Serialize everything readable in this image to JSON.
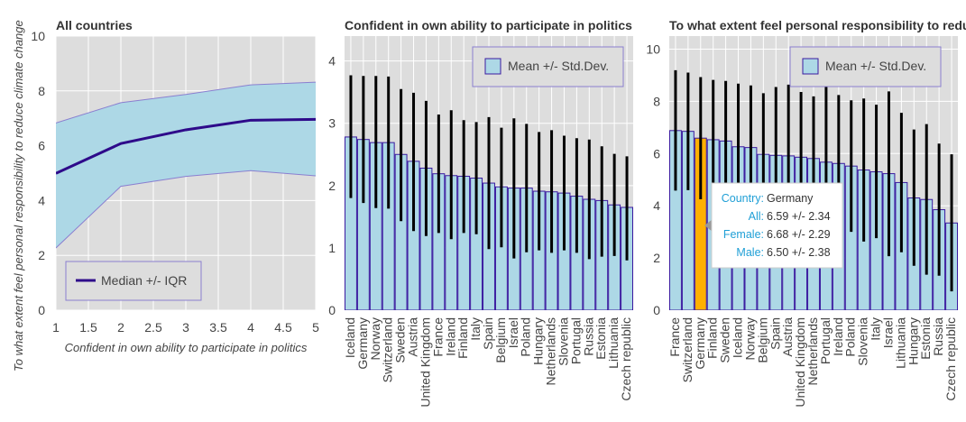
{
  "shared_ylabel": "To what extent feel personal responsibility to reduce climate change",
  "chart_data": [
    {
      "type": "area",
      "title": "All countries",
      "xlabel": "Confident in own ability to participate in politics",
      "ylabel": "To what extent feel personal responsibility to reduce climate change",
      "x": [
        1,
        2,
        3,
        4,
        5
      ],
      "xticks": [
        "1",
        "1.5",
        "2",
        "2.5",
        "3",
        "3.5",
        "4",
        "4.5",
        "5"
      ],
      "yticks": [
        "0",
        "2",
        "4",
        "6",
        "8",
        "10"
      ],
      "xlim": [
        1,
        5
      ],
      "ylim": [
        0,
        10
      ],
      "series": [
        {
          "name": "Median +/- IQR",
          "median": [
            4.99,
            6.08,
            6.58,
            6.93,
            6.96
          ],
          "lower": [
            2.27,
            4.52,
            4.88,
            5.09,
            4.9
          ],
          "upper": [
            6.83,
            7.57,
            7.87,
            8.22,
            8.32
          ]
        }
      ],
      "legend": {
        "label": "Median +/- IQR",
        "position": "bottom-left"
      },
      "grid": true,
      "colors": {
        "band": "#add8e6",
        "band_edge": "#8a7fd0",
        "line": "#2e0a8a",
        "plot_bg": "#dddddd"
      }
    },
    {
      "type": "bar",
      "title": "Confident in own ability to participate in politics",
      "categories": [
        "Iceland",
        "Germany",
        "Norway",
        "Switzerland",
        "Sweden",
        "Austria",
        "United Kingdom",
        "France",
        "Ireland",
        "Finland",
        "Italy",
        "Spain",
        "Belgium",
        "Israel",
        "Poland",
        "Hungary",
        "Netherlands",
        "Slovenia",
        "Portugal",
        "Russia",
        "Estonia",
        "Lithuania",
        "Czech republic"
      ],
      "values": [
        2.78,
        2.74,
        2.69,
        2.69,
        2.5,
        2.39,
        2.28,
        2.19,
        2.16,
        2.15,
        2.12,
        2.04,
        1.98,
        1.96,
        1.96,
        1.91,
        1.9,
        1.88,
        1.83,
        1.78,
        1.76,
        1.69,
        1.65
      ],
      "errors_upper": [
        3.77,
        3.76,
        3.76,
        3.75,
        3.55,
        3.49,
        3.36,
        3.14,
        3.21,
        3.05,
        3.02,
        3.1,
        2.93,
        3.08,
        2.99,
        2.86,
        2.89,
        2.8,
        2.76,
        2.74,
        2.63,
        2.51,
        2.47
      ],
      "errors_lower": [
        1.8,
        1.72,
        1.64,
        1.63,
        1.43,
        1.27,
        1.19,
        1.24,
        1.14,
        1.24,
        1.22,
        0.98,
        1.01,
        0.83,
        0.93,
        0.96,
        0.92,
        0.96,
        0.92,
        0.82,
        0.86,
        0.87,
        0.8
      ],
      "yticks": [
        "0",
        "1",
        "2",
        "3",
        "4"
      ],
      "ylim": [
        0,
        4.4
      ],
      "legend": {
        "label": "Mean +/- Std.Dev.",
        "position": "top-right"
      },
      "grid": true,
      "colors": {
        "bar": "#add8e6",
        "bar_edge": "#3a1aa0",
        "error": "#000000",
        "plot_bg": "#dddddd"
      }
    },
    {
      "type": "bar",
      "title": "To what extent feel personal responsibility to reduce climate change",
      "categories": [
        "France",
        "Switzerland",
        "Germany",
        "Finland",
        "Sweden",
        "Iceland",
        "Norway",
        "Belgium",
        "Spain",
        "Austria",
        "United Kingdom",
        "Netherlands",
        "Portugal",
        "Ireland",
        "Poland",
        "Slovenia",
        "Italy",
        "Israel",
        "Lithuania",
        "Hungary",
        "Estonia",
        "Russia",
        "Czech republic"
      ],
      "values": [
        6.88,
        6.85,
        6.59,
        6.53,
        6.48,
        6.26,
        6.23,
        5.97,
        5.93,
        5.91,
        5.86,
        5.81,
        5.67,
        5.62,
        5.52,
        5.37,
        5.3,
        5.23,
        4.89,
        4.3,
        4.24,
        3.85,
        3.34
      ],
      "errors_upper": [
        9.19,
        9.1,
        8.93,
        8.82,
        8.78,
        8.68,
        8.61,
        8.31,
        8.55,
        8.64,
        8.36,
        8.19,
        8.96,
        8.24,
        8.04,
        8.11,
        7.87,
        8.38,
        7.56,
        6.92,
        7.13,
        6.38,
        5.97
      ],
      "errors_lower": [
        4.58,
        4.6,
        4.25,
        4.25,
        4.18,
        3.83,
        3.86,
        3.63,
        3.35,
        3.16,
        3.32,
        3.26,
        2.32,
        3.0,
        3.0,
        2.63,
        2.76,
        2.07,
        2.22,
        1.7,
        1.36,
        1.32,
        0.72
      ],
      "highlight_index": 2,
      "yticks": [
        "0",
        "2",
        "4",
        "6",
        "8",
        "10"
      ],
      "ylim": [
        0,
        10.5
      ],
      "legend": {
        "label": "Mean +/- Std.Dev.",
        "position": "top-right"
      },
      "grid": true,
      "colors": {
        "bar": "#add8e6",
        "bar_edge": "#3a1aa0",
        "highlight": "#ffb000",
        "error": "#000000",
        "plot_bg": "#dddddd"
      },
      "tooltip": {
        "rows": [
          {
            "key": "Country:",
            "value": "Germany"
          },
          {
            "key": "All:",
            "value": "6.59 +/- 2.34"
          },
          {
            "key": "Female:",
            "value": "6.68 +/- 2.29"
          },
          {
            "key": "Male:",
            "value": "6.50 +/- 2.38"
          }
        ],
        "key_color": "#1f9fd6"
      }
    }
  ]
}
